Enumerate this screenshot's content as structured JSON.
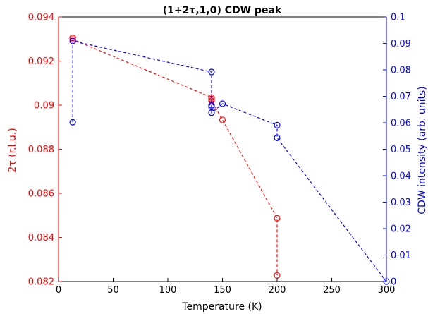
{
  "chart_data": {
    "type": "scatter",
    "title": "(1+2τ,1,0) CDW peak",
    "xlabel": "Temperature (K)",
    "ylabel_left": "2τ (r.l.u.)",
    "ylabel_right": "CDW intensity (arb. units)",
    "xlim": [
      0,
      300
    ],
    "ylim_left": [
      0.082,
      0.094
    ],
    "ylim_right": [
      0,
      0.1
    ],
    "x_ticks": [
      0,
      50,
      100,
      150,
      200,
      250,
      300
    ],
    "y_ticks_left": [
      "0.082",
      "0.084",
      "0.086",
      "0.088",
      "0.09",
      "0.092",
      "0.094"
    ],
    "y_ticks_right": [
      "0",
      "0.01",
      "0.02",
      "0.03",
      "0.04",
      "0.05",
      "0.06",
      "0.07",
      "0.08",
      "0.09",
      "0.1"
    ],
    "grid": false,
    "legend": false,
    "series": [
      {
        "axis": "left",
        "color": "#ff0000",
        "marker": "open-circle",
        "line": "dashed",
        "x": [
          13,
          13,
          140,
          140,
          140,
          150,
          200,
          200
        ],
        "y": [
          0.09305,
          0.09298,
          0.09035,
          0.09028,
          0.0902,
          0.08933,
          0.08487,
          0.08228
        ]
      },
      {
        "axis": "right",
        "color": "#0000ff",
        "marker": "open-circle",
        "line": "dashed",
        "x": [
          13,
          13,
          140,
          140,
          140,
          140,
          150,
          200,
          200,
          300
        ],
        "y": [
          0.0602,
          0.0909,
          0.0792,
          0.0666,
          0.066,
          0.0638,
          0.0672,
          0.0591,
          0.0543,
          0.0
        ]
      }
    ]
  }
}
